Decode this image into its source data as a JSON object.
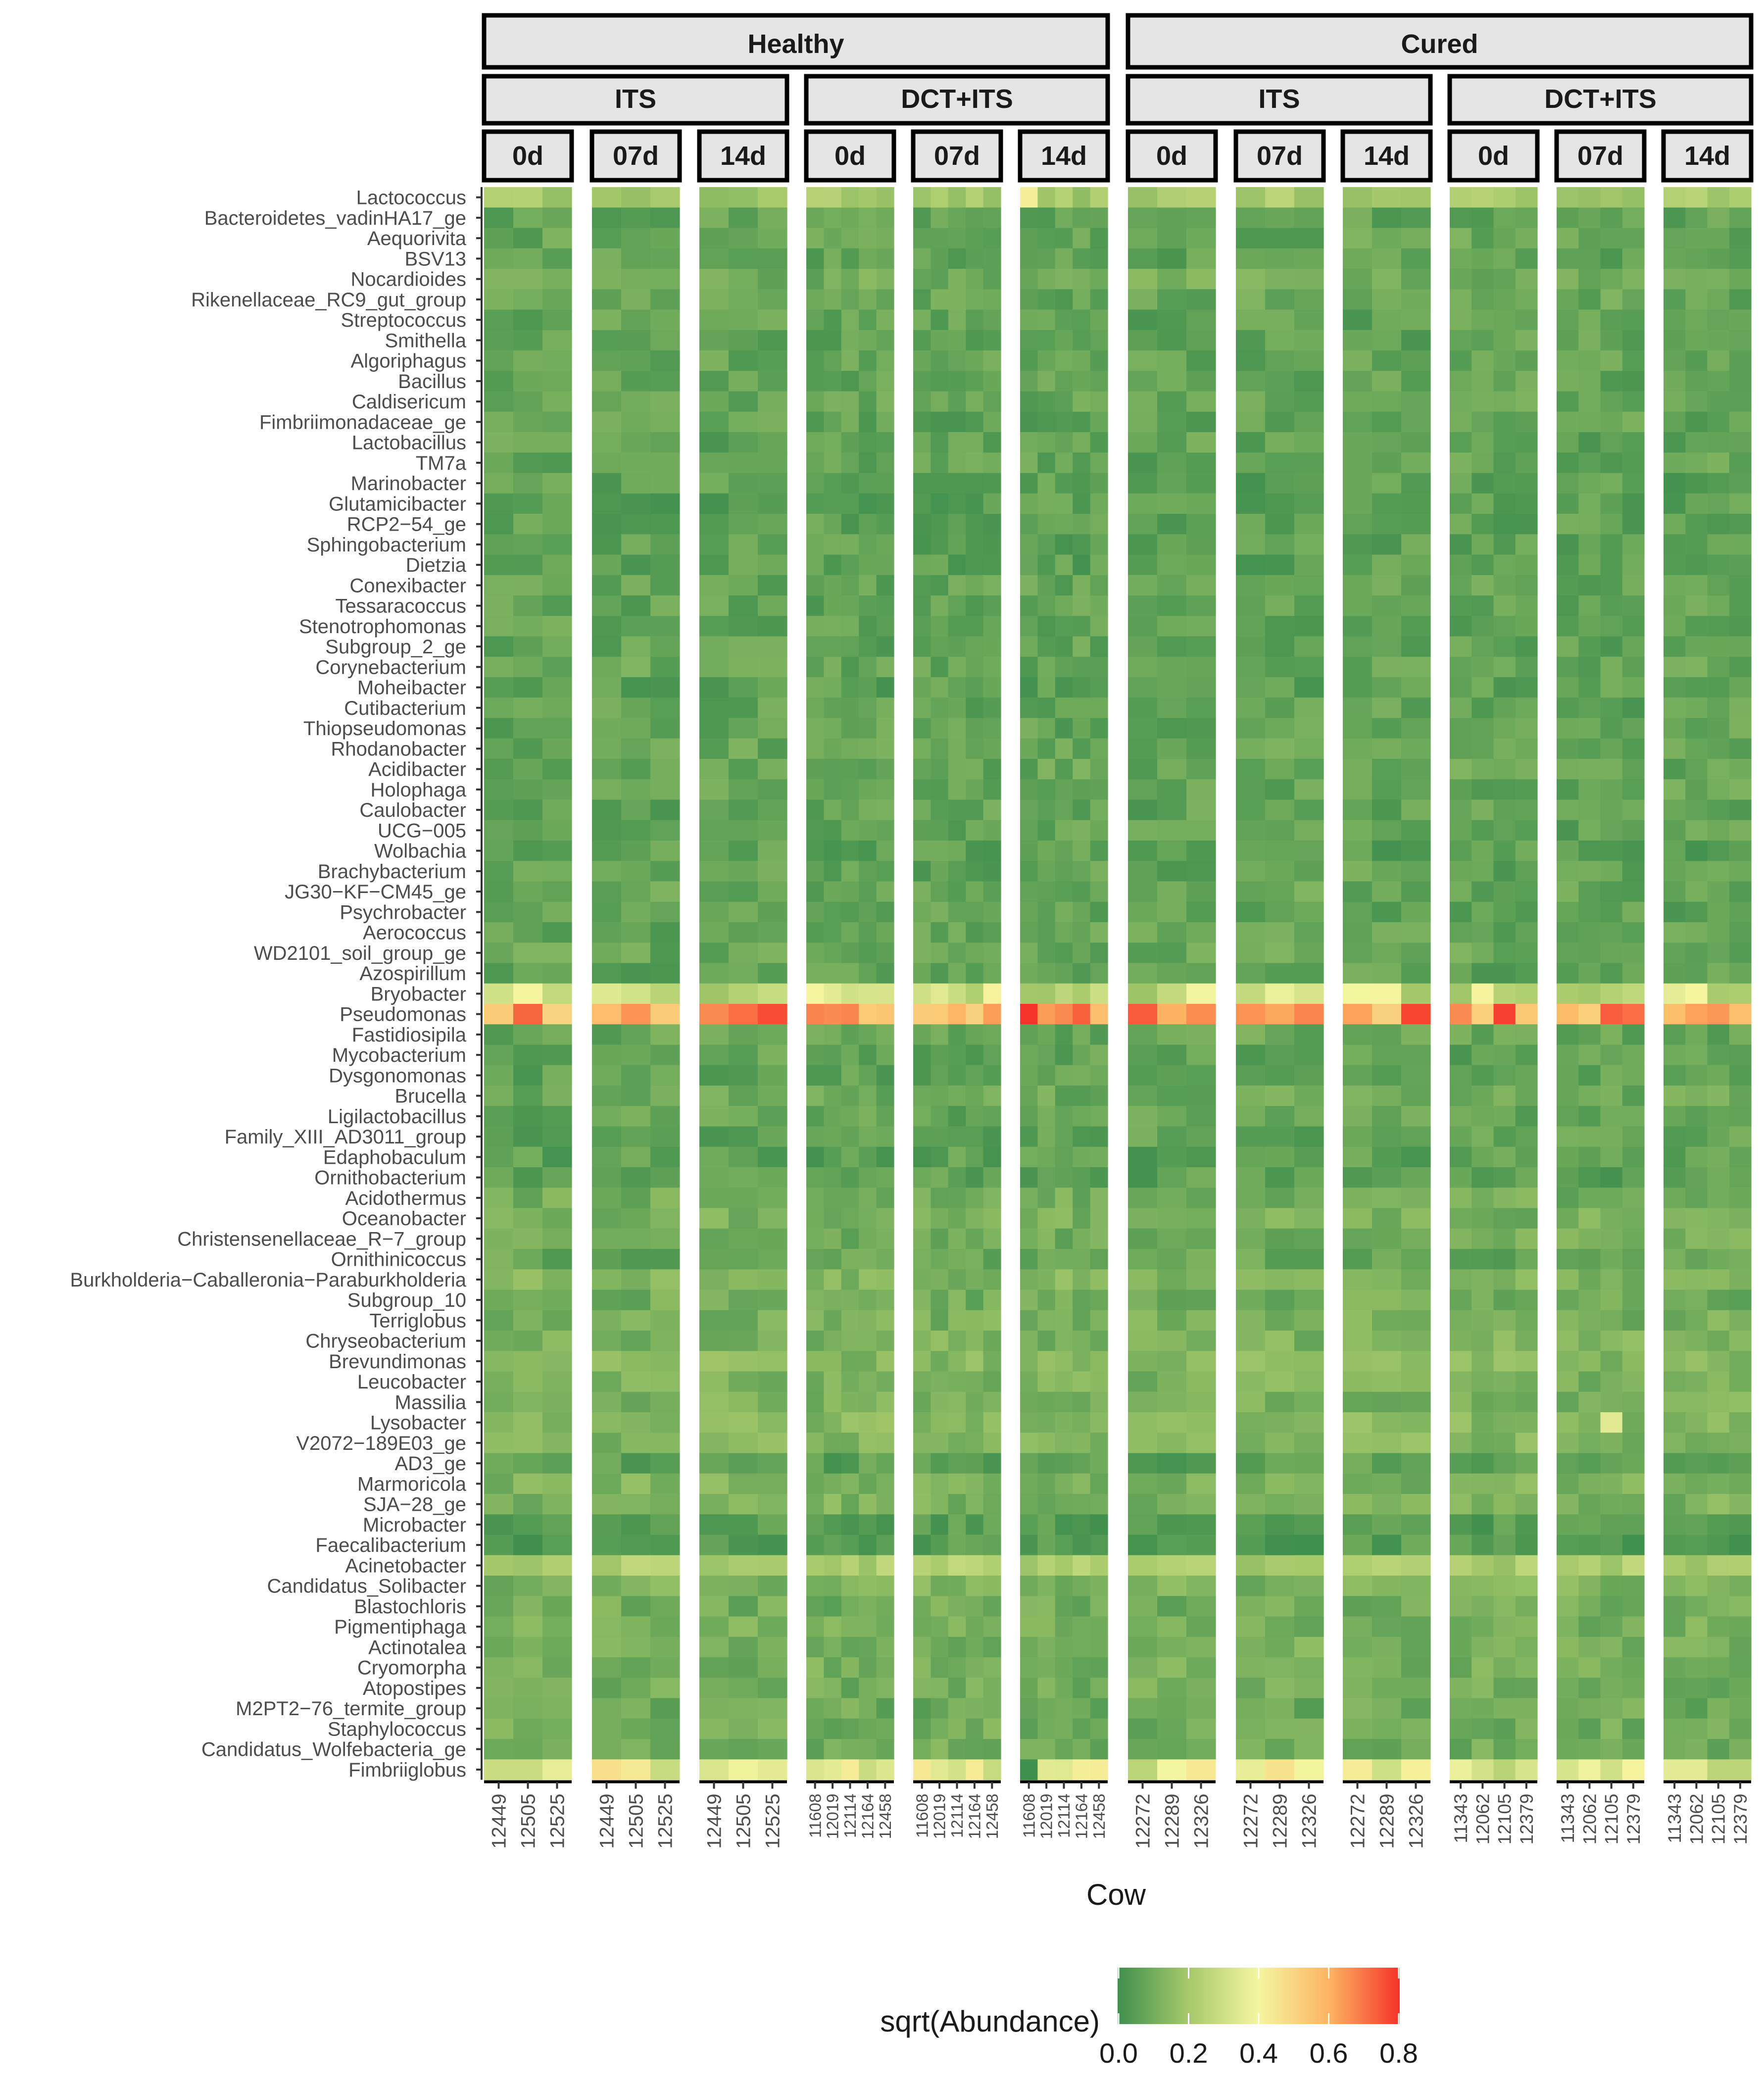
{
  "chart_data": {
    "type": "heatmap",
    "xlabel": "Cow",
    "ylabel": "",
    "legend": {
      "title": "sqrt(Abundance)",
      "ticks": [
        "0.0",
        "0.2",
        "0.4",
        "0.6",
        "0.8"
      ],
      "range": [
        0,
        0.8
      ],
      "position": "bottom",
      "colors": [
        "#3f8f4e",
        "#a6c96a",
        "#f5f5a0",
        "#fdb462",
        "#f5332a"
      ]
    },
    "facets": {
      "status": [
        {
          "name": "Healthy",
          "groups": [
            {
              "name": "ITS",
              "days": [
                {
                  "day": "0d",
                  "cows": [
                    "12449",
                    "12505",
                    "12525"
                  ]
                },
                {
                  "day": "07d",
                  "cows": [
                    "12449",
                    "12505",
                    "12525"
                  ]
                },
                {
                  "day": "14d",
                  "cows": [
                    "12449",
                    "12505",
                    "12525"
                  ]
                }
              ]
            },
            {
              "name": "DCT+ITS",
              "days": [
                {
                  "day": "0d",
                  "cows": [
                    "11608",
                    "12019",
                    "12114",
                    "12164",
                    "12458"
                  ]
                },
                {
                  "day": "07d",
                  "cows": [
                    "11608",
                    "12019",
                    "12114",
                    "12164",
                    "12458"
                  ]
                },
                {
                  "day": "14d",
                  "cows": [
                    "11608",
                    "12019",
                    "12114",
                    "12164",
                    "12458"
                  ]
                }
              ]
            }
          ]
        },
        {
          "name": "Cured",
          "groups": [
            {
              "name": "ITS",
              "days": [
                {
                  "day": "0d",
                  "cows": [
                    "12272",
                    "12289",
                    "12326"
                  ]
                },
                {
                  "day": "07d",
                  "cows": [
                    "12272",
                    "12289",
                    "12326"
                  ]
                },
                {
                  "day": "14d",
                  "cows": [
                    "12272",
                    "12289",
                    "12326"
                  ]
                }
              ]
            },
            {
              "name": "DCT+ITS",
              "days": [
                {
                  "day": "0d",
                  "cows": [
                    "11343",
                    "12062",
                    "12105",
                    "12379"
                  ]
                },
                {
                  "day": "07d",
                  "cows": [
                    "11343",
                    "12062",
                    "12105",
                    "12379"
                  ]
                },
                {
                  "day": "14d",
                  "cows": [
                    "11343",
                    "12062",
                    "12105",
                    "12379"
                  ]
                }
              ]
            }
          ]
        }
      ]
    },
    "genera": [
      "Lactococcus",
      "Bacteroidetes_vadinHA17_ge",
      "Aequorivita",
      "BSV13",
      "Nocardioides",
      "Rikenellaceae_RC9_gut_group",
      "Streptococcus",
      "Smithella",
      "Algoriphagus",
      "Bacillus",
      "Caldisericum",
      "Fimbriimonadaceae_ge",
      "Lactobacillus",
      "TM7a",
      "Marinobacter",
      "Glutamicibacter",
      "RCP2−54_ge",
      "Sphingobacterium",
      "Dietzia",
      "Conexibacter",
      "Tessaracoccus",
      "Stenotrophomonas",
      "Subgroup_2_ge",
      "Corynebacterium",
      "Moheibacter",
      "Cutibacterium",
      "Thiopseudomonas",
      "Rhodanobacter",
      "Acidibacter",
      "Holophaga",
      "Caulobacter",
      "UCG−005",
      "Wolbachia",
      "Brachybacterium",
      "JG30−KF−CM45_ge",
      "Psychrobacter",
      "Aerococcus",
      "WD2101_soil_group_ge",
      "Azospirillum",
      "Bryobacter",
      "Pseudomonas",
      "Fastidiosipila",
      "Mycobacterium",
      "Dysgonomonas",
      "Brucella",
      "Ligilactobacillus",
      "Family_XIII_AD3011_group",
      "Edaphobaculum",
      "Ornithobacterium",
      "Acidothermus",
      "Oceanobacter",
      "Christensenellaceae_R−7_group",
      "Ornithinicoccus",
      "Burkholderia−Caballeronia−Paraburkholderia",
      "Subgroup_10",
      "Terriglobus",
      "Chryseobacterium",
      "Brevundimonas",
      "Leucobacter",
      "Massilia",
      "Lysobacter",
      "V2072−189E03_ge",
      "AD3_ge",
      "Marmoricola",
      "SJA−28_ge",
      "Microbacter",
      "Faecalibacterium",
      "Acinetobacter",
      "Candidatus_Solibacter",
      "Blastochloris",
      "Pigmentiphaga",
      "Actinotalea",
      "Cryomorpha",
      "Atopostipes",
      "M2PT2−76_termite_group",
      "Staphylococcus",
      "Candidatus_Wolfebacteria_ge",
      "Fimbriiglobus"
    ],
    "genus_base_abundance": [
      0.2,
      0.07,
      0.08,
      0.07,
      0.1,
      0.08,
      0.07,
      0.07,
      0.07,
      0.07,
      0.08,
      0.07,
      0.07,
      0.07,
      0.06,
      0.06,
      0.06,
      0.06,
      0.06,
      0.07,
      0.07,
      0.07,
      0.07,
      0.08,
      0.06,
      0.07,
      0.07,
      0.08,
      0.08,
      0.08,
      0.07,
      0.07,
      0.06,
      0.07,
      0.08,
      0.07,
      0.07,
      0.08,
      0.07,
      0.3,
      0.62,
      0.08,
      0.07,
      0.06,
      0.09,
      0.07,
      0.07,
      0.06,
      0.06,
      0.1,
      0.11,
      0.1,
      0.08,
      0.13,
      0.1,
      0.11,
      0.12,
      0.14,
      0.12,
      0.12,
      0.14,
      0.13,
      0.06,
      0.12,
      0.12,
      0.05,
      0.05,
      0.22,
      0.12,
      0.1,
      0.11,
      0.11,
      0.11,
      0.1,
      0.09,
      0.1,
      0.1,
      0.36
    ],
    "special_cells": [
      {
        "facet": "Healthy/DCT+ITS/14d",
        "cow": "11608",
        "genus": "Lactococcus",
        "value": 0.42
      },
      {
        "facet": "Healthy/DCT+ITS/14d",
        "cow": "11608",
        "genus": "Pseudomonas",
        "value": 0.8
      },
      {
        "facet": "Healthy/DCT+ITS/14d",
        "cow": "11608",
        "genus": "Fimbriiglobus",
        "value": 0.0
      },
      {
        "facet": "Healthy/DCT+ITS/0d",
        "cow": "11608",
        "genus": "Bryobacter",
        "value": 0.4
      },
      {
        "facet": "Cured/DCT+ITS/07d",
        "cow": "12105",
        "genus": "Lysobacter",
        "value": 0.35
      },
      {
        "facet": "Cured/DCT+ITS/0d",
        "cow": "12105",
        "genus": "Pseudomonas",
        "value": 0.78
      },
      {
        "facet": "Healthy/ITS/14d",
        "cow": "12525",
        "genus": "Pseudomonas",
        "value": 0.76
      },
      {
        "facet": "Cured/ITS/14d",
        "cow": "12326",
        "genus": "Pseudomonas",
        "value": 0.77
      }
    ]
  }
}
